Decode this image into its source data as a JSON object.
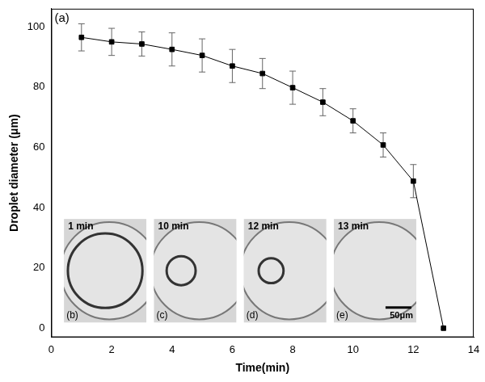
{
  "chart_data": {
    "type": "line",
    "panel_label": "(a)",
    "x_label": "Time(min)",
    "y_label": "Droplet diameter (μm)",
    "x": [
      1,
      2,
      3,
      4,
      5,
      6,
      7,
      8,
      9,
      10,
      11,
      12,
      13
    ],
    "values": [
      96.5,
      95,
      94.3,
      92.5,
      90.5,
      87,
      84.5,
      79.8,
      75,
      68.8,
      60.8,
      48.8,
      0
    ],
    "error": [
      4.5,
      4.5,
      4,
      5.5,
      5.5,
      5.5,
      5,
      5.5,
      4.5,
      4,
      4,
      5.5,
      0
    ],
    "xlim": [
      0,
      14
    ],
    "xticks": [
      0,
      2,
      4,
      6,
      8,
      10,
      12,
      14
    ],
    "ylim": [
      -3,
      106
    ],
    "yticks": [
      0,
      20,
      40,
      60,
      80,
      100
    ],
    "grid": false,
    "color": "#000000",
    "marker": "square",
    "line_style": "solid",
    "insets": [
      {
        "time": "1 min",
        "label": "(b)"
      },
      {
        "time": "10 min",
        "label": "(c)"
      },
      {
        "time": "12 min",
        "label": "(d)"
      },
      {
        "time": "13 min",
        "label": "(e)"
      }
    ],
    "scale_bar": "50μm"
  }
}
